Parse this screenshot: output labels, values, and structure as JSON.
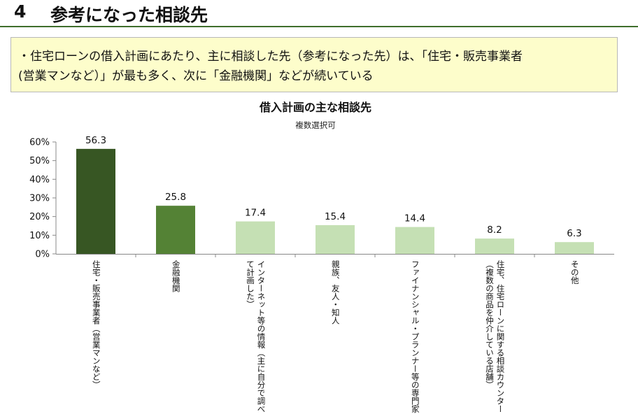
{
  "header": {
    "number": "4",
    "title": "参考になった相談先"
  },
  "summary": {
    "line1": "・住宅ローンの借入計画にあたり、主に相談した先（参考になった先）は、「住宅・販売事業者",
    "line2": "(営業マンなど）」が最も多く、次に「金融機関」などが続いている"
  },
  "chart_data": {
    "type": "bar",
    "title": "借入計画の主な相談先",
    "subtitle": "複数選択可",
    "ylim": [
      0,
      60
    ],
    "yticks": [
      "0%",
      "10%",
      "20%",
      "30%",
      "40%",
      "50%",
      "60%"
    ],
    "categories": [
      "住宅・販売事業者（営業マンなど）",
      "金融機関",
      "インターネット等の情報（主に自分で調べて計画した）",
      "親族、友人・知人",
      "ファイナンシャル・プランナー等の専門家",
      "住宅、住宅ローンに関する相談カウンター（複数の商品を仲介している店舗）",
      "その他"
    ],
    "category_lines": [
      [
        "住宅・販売事業者（営業マンなど）"
      ],
      [
        "金融機関"
      ],
      [
        "インターネット等の情報（主に自分で調べ",
        "て計画した）"
      ],
      [
        "親族、友人・知人"
      ],
      [
        "ファイナンシャル・プランナー等の専門家"
      ],
      [
        "住宅、住宅ローンに関する相談カウンター",
        "（複数の商品を仲介している店舗）"
      ],
      [
        "その他"
      ]
    ],
    "values": [
      56.3,
      25.8,
      17.4,
      15.4,
      14.4,
      8.2,
      6.3
    ],
    "value_labels": [
      "56.3",
      "25.8",
      "17.4",
      "15.4",
      "14.4",
      "8.2",
      "6.3"
    ],
    "colors": [
      "#375623",
      "#548235",
      "#c5e0b4",
      "#c5e0b4",
      "#c5e0b4",
      "#c5e0b4",
      "#c5e0b4"
    ],
    "grid": false,
    "legend": "none"
  }
}
